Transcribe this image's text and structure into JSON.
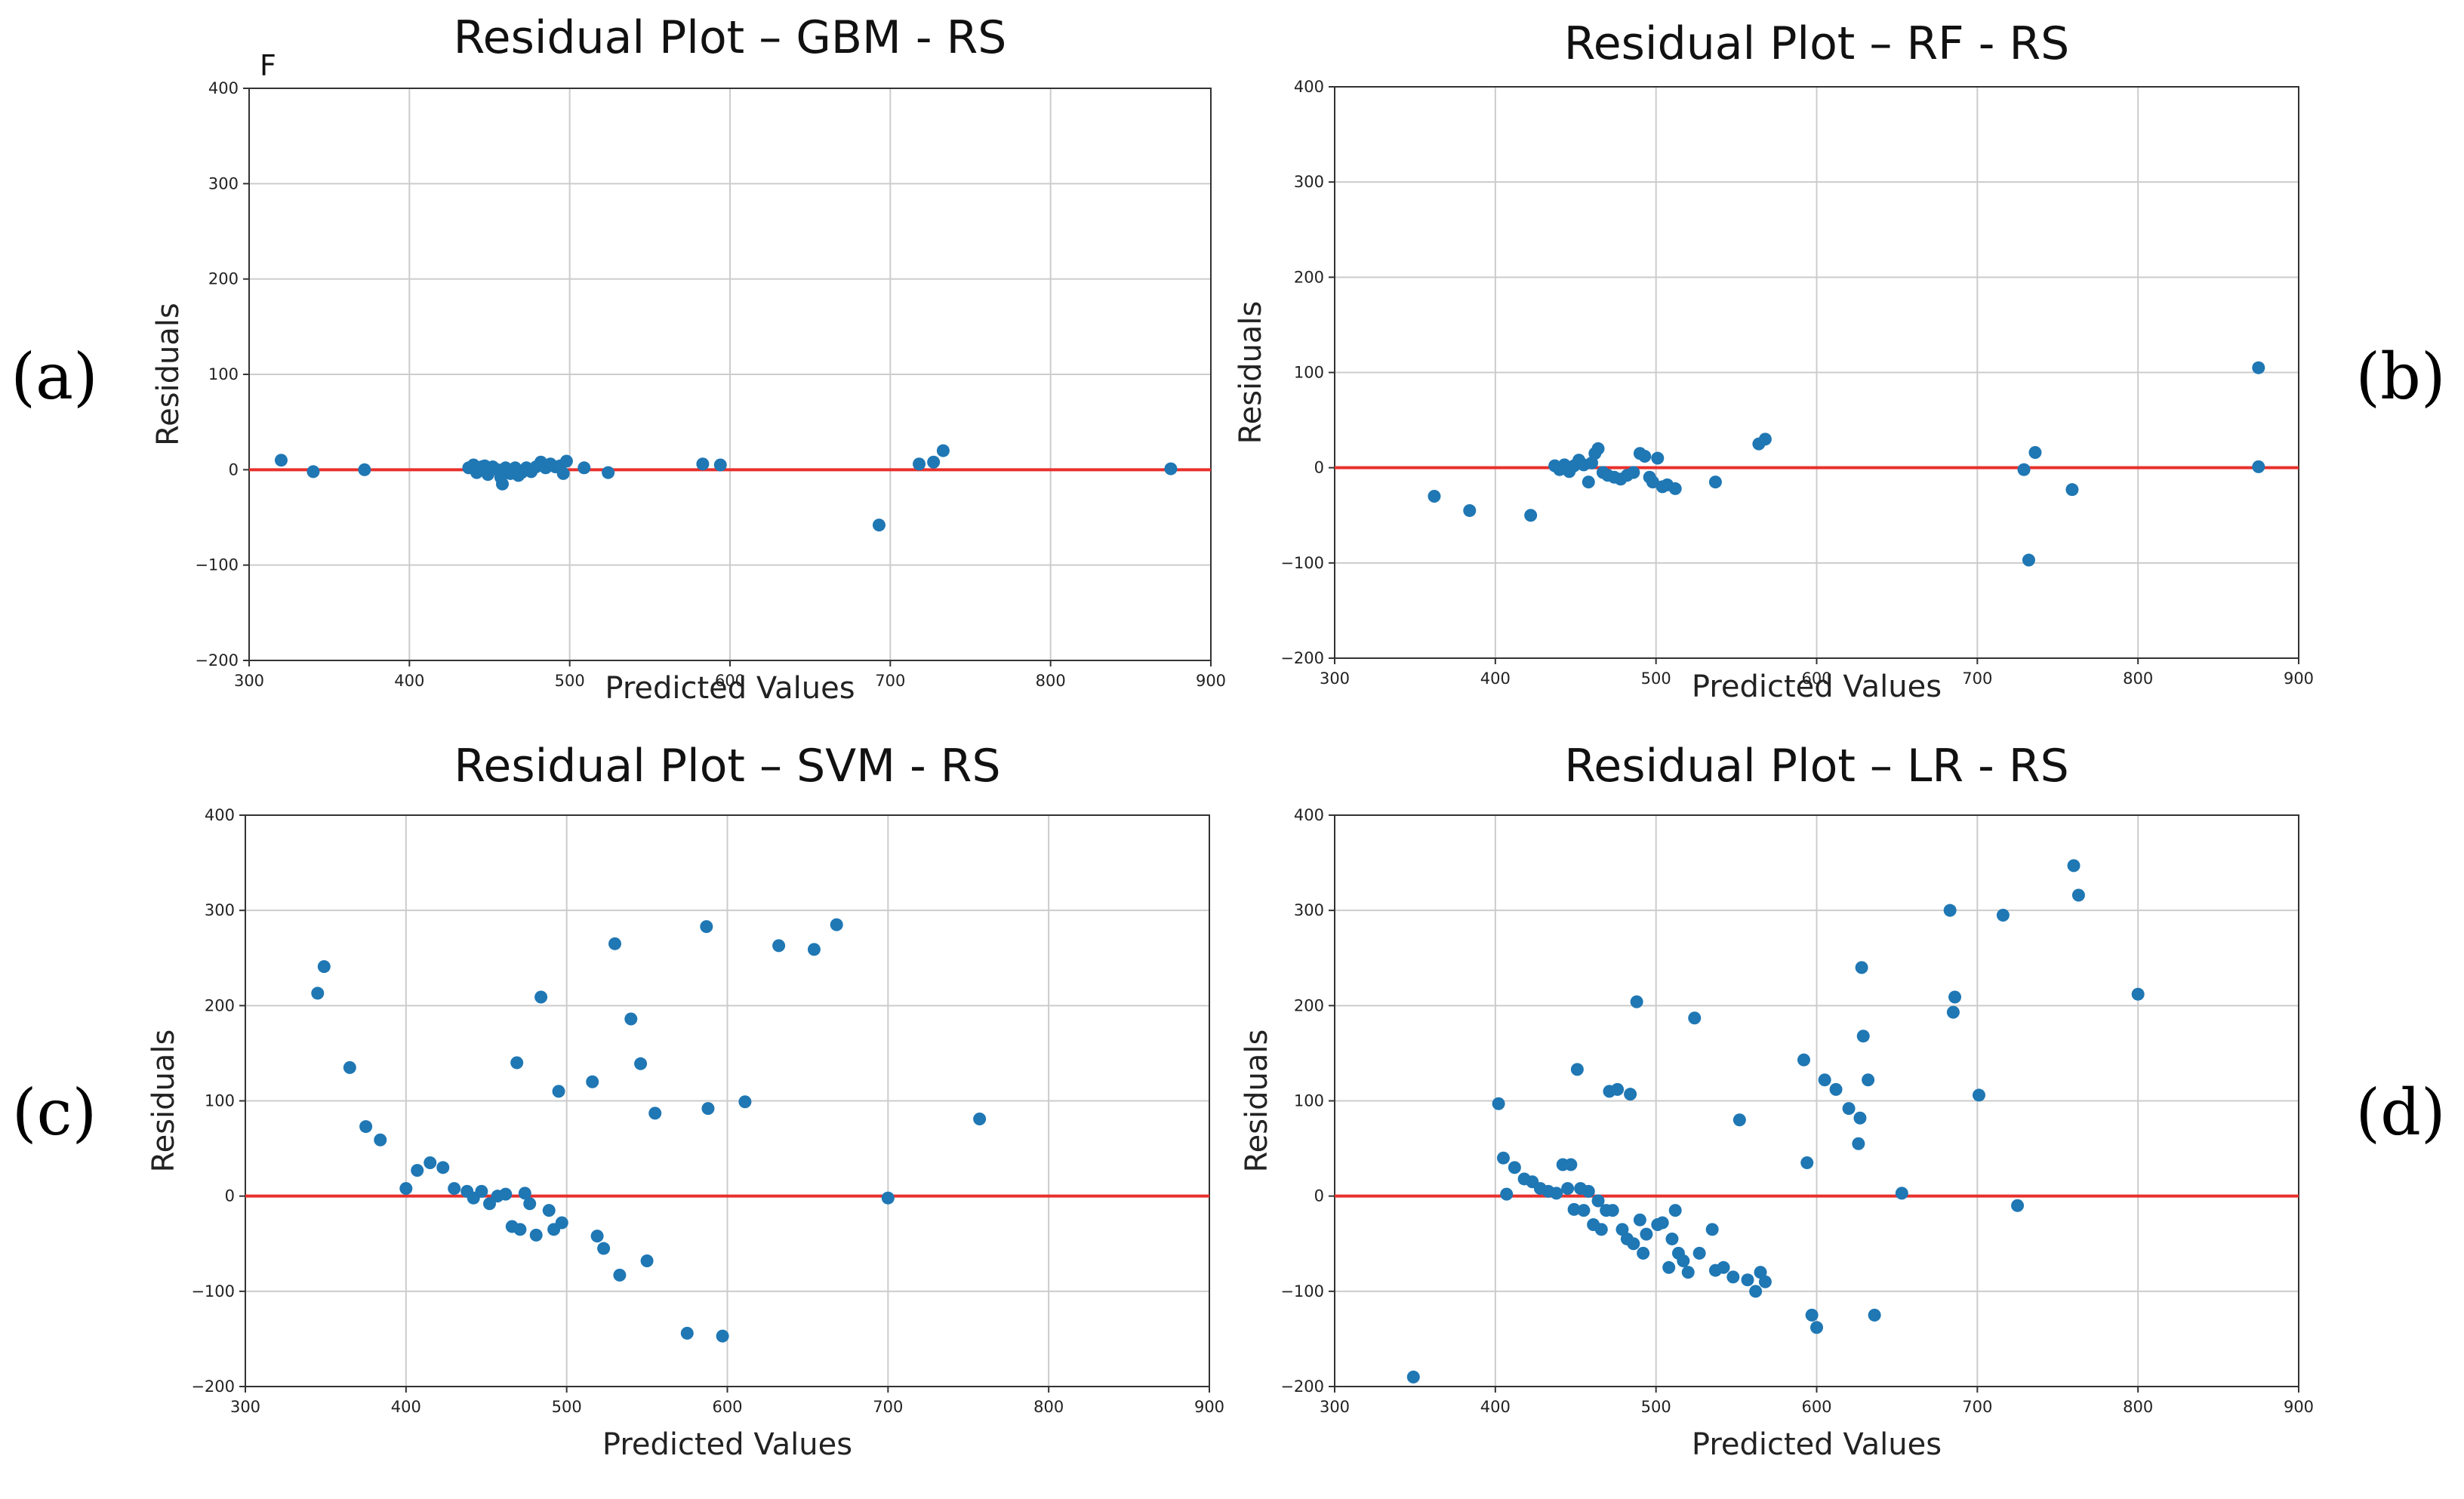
{
  "figure": {
    "colors": {
      "point": "#1f77b4",
      "zero_line": "#e8302c",
      "grid": "#cccccc",
      "frame": "#333333"
    },
    "stray_mark": "F"
  },
  "chart_data": [
    {
      "id": "a",
      "type": "scatter",
      "panel_label": "(a)",
      "title": "Residual Plot – GBM - RS",
      "xlabel": "Predicted Values",
      "ylabel": "Residuals",
      "xlim": [
        300,
        900
      ],
      "ylim": [
        -200,
        400
      ],
      "xticks": [
        300,
        400,
        500,
        600,
        700,
        800,
        900
      ],
      "yticks": [
        -200,
        -100,
        0,
        100,
        200,
        300,
        400
      ],
      "grid": true,
      "reference_line_y": 0,
      "points": [
        [
          320,
          10
        ],
        [
          340,
          -2
        ],
        [
          372,
          0
        ],
        [
          437,
          2
        ],
        [
          440,
          5
        ],
        [
          442,
          -3
        ],
        [
          445,
          3
        ],
        [
          447,
          4
        ],
        [
          449,
          -5
        ],
        [
          452,
          3
        ],
        [
          455,
          0
        ],
        [
          457,
          -8
        ],
        [
          458,
          -15
        ],
        [
          460,
          2
        ],
        [
          463,
          -4
        ],
        [
          466,
          2
        ],
        [
          468,
          -6
        ],
        [
          470,
          -3
        ],
        [
          473,
          2
        ],
        [
          476,
          -2
        ],
        [
          479,
          3
        ],
        [
          482,
          8
        ],
        [
          485,
          2
        ],
        [
          488,
          6
        ],
        [
          491,
          3
        ],
        [
          494,
          4
        ],
        [
          496,
          -4
        ],
        [
          498,
          9
        ],
        [
          509,
          2
        ],
        [
          524,
          -3
        ],
        [
          583,
          6
        ],
        [
          594,
          5
        ],
        [
          693,
          -58
        ],
        [
          718,
          6
        ],
        [
          727,
          8
        ],
        [
          733,
          20
        ],
        [
          875,
          1
        ]
      ]
    },
    {
      "id": "b",
      "type": "scatter",
      "panel_label": "(b)",
      "title": "Residual Plot – RF - RS",
      "xlabel": "Predicted Values",
      "ylabel": "Residuals",
      "xlim": [
        300,
        900
      ],
      "ylim": [
        -200,
        400
      ],
      "xticks": [
        300,
        400,
        500,
        600,
        700,
        800,
        900
      ],
      "yticks": [
        -200,
        -100,
        0,
        100,
        200,
        300,
        400
      ],
      "grid": true,
      "reference_line_y": 0,
      "points": [
        [
          362,
          -30
        ],
        [
          384,
          -45
        ],
        [
          422,
          -50
        ],
        [
          437,
          2
        ],
        [
          440,
          -2
        ],
        [
          443,
          3
        ],
        [
          446,
          -4
        ],
        [
          449,
          2
        ],
        [
          452,
          8
        ],
        [
          455,
          3
        ],
        [
          458,
          -15
        ],
        [
          460,
          5
        ],
        [
          462,
          15
        ],
        [
          464,
          20
        ],
        [
          467,
          -5
        ],
        [
          470,
          -8
        ],
        [
          474,
          -10
        ],
        [
          478,
          -12
        ],
        [
          482,
          -8
        ],
        [
          486,
          -5
        ],
        [
          490,
          15
        ],
        [
          493,
          12
        ],
        [
          496,
          -10
        ],
        [
          498,
          -15
        ],
        [
          501,
          10
        ],
        [
          504,
          -20
        ],
        [
          507,
          -18
        ],
        [
          512,
          -22
        ],
        [
          537,
          -15
        ],
        [
          564,
          25
        ],
        [
          568,
          30
        ],
        [
          729,
          -2
        ],
        [
          732,
          -97
        ],
        [
          736,
          16
        ],
        [
          759,
          -23
        ],
        [
          875,
          105
        ],
        [
          875,
          1
        ]
      ]
    },
    {
      "id": "c",
      "type": "scatter",
      "panel_label": "(c)",
      "title": "Residual Plot – SVM - RS",
      "xlabel": "Predicted Values",
      "ylabel": "Residuals",
      "xlim": [
        300,
        900
      ],
      "ylim": [
        -200,
        400
      ],
      "xticks": [
        300,
        400,
        500,
        600,
        700,
        800,
        900
      ],
      "yticks": [
        -200,
        -100,
        0,
        100,
        200,
        300,
        400
      ],
      "grid": true,
      "reference_line_y": 0,
      "points": [
        [
          345,
          213
        ],
        [
          349,
          241
        ],
        [
          365,
          135
        ],
        [
          375,
          73
        ],
        [
          384,
          59
        ],
        [
          400,
          8
        ],
        [
          407,
          27
        ],
        [
          415,
          35
        ],
        [
          423,
          30
        ],
        [
          430,
          8
        ],
        [
          438,
          5
        ],
        [
          442,
          -2
        ],
        [
          447,
          5
        ],
        [
          452,
          -8
        ],
        [
          457,
          0
        ],
        [
          462,
          2
        ],
        [
          466,
          -32
        ],
        [
          469,
          140
        ],
        [
          471,
          -35
        ],
        [
          474,
          3
        ],
        [
          477,
          -8
        ],
        [
          481,
          -41
        ],
        [
          484,
          209
        ],
        [
          489,
          -15
        ],
        [
          492,
          -35
        ],
        [
          495,
          110
        ],
        [
          497,
          -28
        ],
        [
          516,
          120
        ],
        [
          519,
          -42
        ],
        [
          523,
          -55
        ],
        [
          530,
          265
        ],
        [
          533,
          -83
        ],
        [
          540,
          186
        ],
        [
          546,
          139
        ],
        [
          550,
          -68
        ],
        [
          555,
          87
        ],
        [
          575,
          -144
        ],
        [
          587,
          283
        ],
        [
          588,
          92
        ],
        [
          597,
          -147
        ],
        [
          611,
          99
        ],
        [
          632,
          263
        ],
        [
          654,
          259
        ],
        [
          668,
          285
        ],
        [
          700,
          -2
        ],
        [
          757,
          81
        ]
      ]
    },
    {
      "id": "d",
      "type": "scatter",
      "panel_label": "(d)",
      "title": "Residual Plot – LR - RS",
      "xlabel": "Predicted Values",
      "ylabel": "Residuals",
      "xlim": [
        300,
        900
      ],
      "ylim": [
        -200,
        400
      ],
      "xticks": [
        300,
        400,
        500,
        600,
        700,
        800,
        900
      ],
      "yticks": [
        -200,
        -100,
        0,
        100,
        200,
        300,
        400
      ],
      "grid": true,
      "reference_line_y": 0,
      "points": [
        [
          349,
          -190
        ],
        [
          402,
          97
        ],
        [
          405,
          40
        ],
        [
          407,
          2
        ],
        [
          412,
          30
        ],
        [
          418,
          18
        ],
        [
          423,
          15
        ],
        [
          428,
          8
        ],
        [
          433,
          5
        ],
        [
          438,
          3
        ],
        [
          442,
          33
        ],
        [
          445,
          8
        ],
        [
          447,
          33
        ],
        [
          449,
          -14
        ],
        [
          451,
          133
        ],
        [
          453,
          8
        ],
        [
          455,
          -15
        ],
        [
          458,
          5
        ],
        [
          461,
          -30
        ],
        [
          464,
          -5
        ],
        [
          466,
          -35
        ],
        [
          469,
          -15
        ],
        [
          471,
          110
        ],
        [
          473,
          -15
        ],
        [
          476,
          112
        ],
        [
          479,
          -35
        ],
        [
          482,
          -45
        ],
        [
          484,
          107
        ],
        [
          486,
          -50
        ],
        [
          488,
          204
        ],
        [
          490,
          -25
        ],
        [
          492,
          -60
        ],
        [
          494,
          -40
        ],
        [
          501,
          -30
        ],
        [
          504,
          -28
        ],
        [
          508,
          -75
        ],
        [
          510,
          -45
        ],
        [
          512,
          -15
        ],
        [
          514,
          -60
        ],
        [
          517,
          -68
        ],
        [
          520,
          -80
        ],
        [
          524,
          187
        ],
        [
          527,
          -60
        ],
        [
          535,
          -35
        ],
        [
          537,
          -78
        ],
        [
          542,
          -75
        ],
        [
          548,
          -85
        ],
        [
          552,
          80
        ],
        [
          557,
          -88
        ],
        [
          562,
          -100
        ],
        [
          565,
          -80
        ],
        [
          568,
          -90
        ],
        [
          592,
          143
        ],
        [
          594,
          35
        ],
        [
          597,
          -125
        ],
        [
          600,
          -138
        ],
        [
          605,
          122
        ],
        [
          612,
          112
        ],
        [
          620,
          92
        ],
        [
          626,
          55
        ],
        [
          627,
          82
        ],
        [
          628,
          240
        ],
        [
          629,
          168
        ],
        [
          632,
          122
        ],
        [
          636,
          -125
        ],
        [
          653,
          3
        ],
        [
          683,
          300
        ],
        [
          685,
          193
        ],
        [
          686,
          209
        ],
        [
          701,
          106
        ],
        [
          716,
          295
        ],
        [
          725,
          -10
        ],
        [
          760,
          347
        ],
        [
          763,
          316
        ],
        [
          800,
          212
        ]
      ]
    }
  ]
}
